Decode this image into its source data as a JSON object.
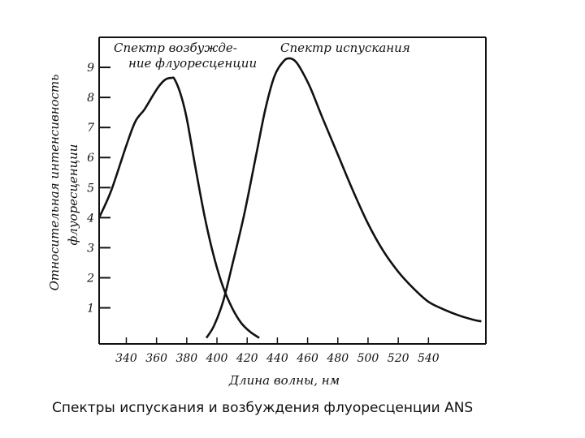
{
  "caption": "Спектры испускания и возбуждения флуоресценции ANS",
  "chart_data": {
    "type": "line",
    "xlabel": "Длина волны, нм",
    "ylabel_line1": "Относительная интенсивность",
    "ylabel_line2": "флуоресценции",
    "xlim": [
      322,
      578
    ],
    "ylim": [
      -0.2,
      10.0
    ],
    "xticks": [
      340,
      360,
      380,
      400,
      420,
      440,
      460,
      480,
      500,
      520,
      540
    ],
    "xtick_labels": [
      "340",
      "360",
      "380",
      "400",
      "420",
      "440",
      "460",
      "480",
      "500",
      "520",
      "540"
    ],
    "yticks": [
      1,
      2,
      3,
      4,
      5,
      6,
      7,
      8,
      9
    ],
    "ytick_labels": [
      "1",
      "2",
      "3",
      "4",
      "5",
      "6",
      "7",
      "8",
      "9"
    ],
    "grid": false,
    "series": [
      {
        "name_line1": "Спектр возбужде-",
        "name_line2": "ние флуоресценции",
        "color": "#111111",
        "x": [
          322,
          330,
          340,
          346,
          352,
          358,
          362,
          366,
          370,
          372,
          376,
          380,
          386,
          392,
          398,
          404,
          410,
          416,
          422,
          428
        ],
        "y": [
          4.0,
          4.9,
          6.4,
          7.2,
          7.6,
          8.1,
          8.4,
          8.6,
          8.65,
          8.6,
          8.1,
          7.3,
          5.6,
          4.0,
          2.7,
          1.7,
          1.0,
          0.5,
          0.2,
          0.0
        ]
      },
      {
        "name_line1": "Спектр испускания",
        "color": "#111111",
        "x": [
          393,
          398,
          404,
          410,
          418,
          426,
          432,
          438,
          444,
          448,
          452,
          456,
          462,
          470,
          480,
          490,
          500,
          510,
          520,
          530,
          540,
          550,
          560,
          570,
          575
        ],
        "y": [
          0.0,
          0.4,
          1.2,
          2.4,
          4.1,
          6.1,
          7.6,
          8.7,
          9.2,
          9.3,
          9.2,
          8.9,
          8.3,
          7.3,
          6.1,
          4.9,
          3.8,
          2.9,
          2.2,
          1.65,
          1.2,
          0.95,
          0.75,
          0.6,
          0.55
        ]
      }
    ]
  }
}
